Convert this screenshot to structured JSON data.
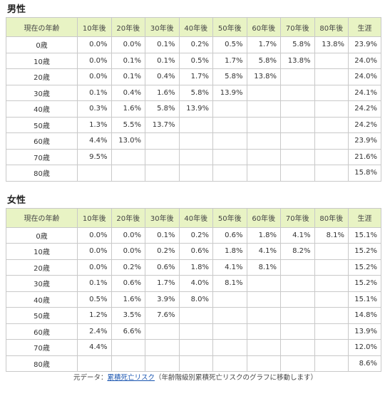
{
  "male": {
    "title": "男性",
    "headers": [
      "現在の年齢",
      "10年後",
      "20年後",
      "30年後",
      "40年後",
      "50年後",
      "60年後",
      "70年後",
      "80年後",
      "生涯"
    ],
    "rows": [
      {
        "age": "0歳",
        "values": [
          "0.0%",
          "0.0%",
          "0.1%",
          "0.2%",
          "0.5%",
          "1.7%",
          "5.8%",
          "13.8%",
          "23.9%"
        ]
      },
      {
        "age": "10歳",
        "values": [
          "0.0%",
          "0.1%",
          "0.1%",
          "0.5%",
          "1.7%",
          "5.8%",
          "13.8%",
          "",
          "24.0%"
        ]
      },
      {
        "age": "20歳",
        "values": [
          "0.0%",
          "0.1%",
          "0.4%",
          "1.7%",
          "5.8%",
          "13.8%",
          "",
          "",
          "24.0%"
        ]
      },
      {
        "age": "30歳",
        "values": [
          "0.1%",
          "0.4%",
          "1.6%",
          "5.8%",
          "13.9%",
          "",
          "",
          "",
          "24.1%"
        ]
      },
      {
        "age": "40歳",
        "values": [
          "0.3%",
          "1.6%",
          "5.8%",
          "13.9%",
          "",
          "",
          "",
          "",
          "24.2%"
        ]
      },
      {
        "age": "50歳",
        "values": [
          "1.3%",
          "5.5%",
          "13.7%",
          "",
          "",
          "",
          "",
          "",
          "24.2%"
        ]
      },
      {
        "age": "60歳",
        "values": [
          "4.4%",
          "13.0%",
          "",
          "",
          "",
          "",
          "",
          "",
          "23.9%"
        ]
      },
      {
        "age": "70歳",
        "values": [
          "9.5%",
          "",
          "",
          "",
          "",
          "",
          "",
          "",
          "21.6%"
        ]
      },
      {
        "age": "80歳",
        "values": [
          "",
          "",
          "",
          "",
          "",
          "",
          "",
          "",
          "15.8%"
        ]
      }
    ]
  },
  "female": {
    "title": "女性",
    "headers": [
      "現在の年齢",
      "10年後",
      "20年後",
      "30年後",
      "40年後",
      "50年後",
      "60年後",
      "70年後",
      "80年後",
      "生涯"
    ],
    "rows": [
      {
        "age": "0歳",
        "values": [
          "0.0%",
          "0.0%",
          "0.1%",
          "0.2%",
          "0.6%",
          "1.8%",
          "4.1%",
          "8.1%",
          "15.1%"
        ]
      },
      {
        "age": "10歳",
        "values": [
          "0.0%",
          "0.0%",
          "0.2%",
          "0.6%",
          "1.8%",
          "4.1%",
          "8.2%",
          "",
          "15.2%"
        ]
      },
      {
        "age": "20歳",
        "values": [
          "0.0%",
          "0.2%",
          "0.6%",
          "1.8%",
          "4.1%",
          "8.1%",
          "",
          "",
          "15.2%"
        ]
      },
      {
        "age": "30歳",
        "values": [
          "0.1%",
          "0.6%",
          "1.7%",
          "4.0%",
          "8.1%",
          "",
          "",
          "",
          "15.2%"
        ]
      },
      {
        "age": "40歳",
        "values": [
          "0.5%",
          "1.6%",
          "3.9%",
          "8.0%",
          "",
          "",
          "",
          "",
          "15.1%"
        ]
      },
      {
        "age": "50歳",
        "values": [
          "1.2%",
          "3.5%",
          "7.6%",
          "",
          "",
          "",
          "",
          "",
          "14.8%"
        ]
      },
      {
        "age": "60歳",
        "values": [
          "2.4%",
          "6.6%",
          "",
          "",
          "",
          "",
          "",
          "",
          "13.9%"
        ]
      },
      {
        "age": "70歳",
        "values": [
          "4.4%",
          "",
          "",
          "",
          "",
          "",
          "",
          "",
          "12.0%"
        ]
      },
      {
        "age": "80歳",
        "values": [
          "",
          "",
          "",
          "",
          "",
          "",
          "",
          "",
          "8.6%"
        ]
      }
    ]
  },
  "source": {
    "prefix": "元データ：",
    "link_text": "累積死亡リスク",
    "note": "（年齢階級別累積死亡リスクのグラフに移動します）"
  },
  "colors": {
    "header_bg": "#e8f3c4",
    "border": "#c9c9c9",
    "link": "#1a55b0"
  }
}
